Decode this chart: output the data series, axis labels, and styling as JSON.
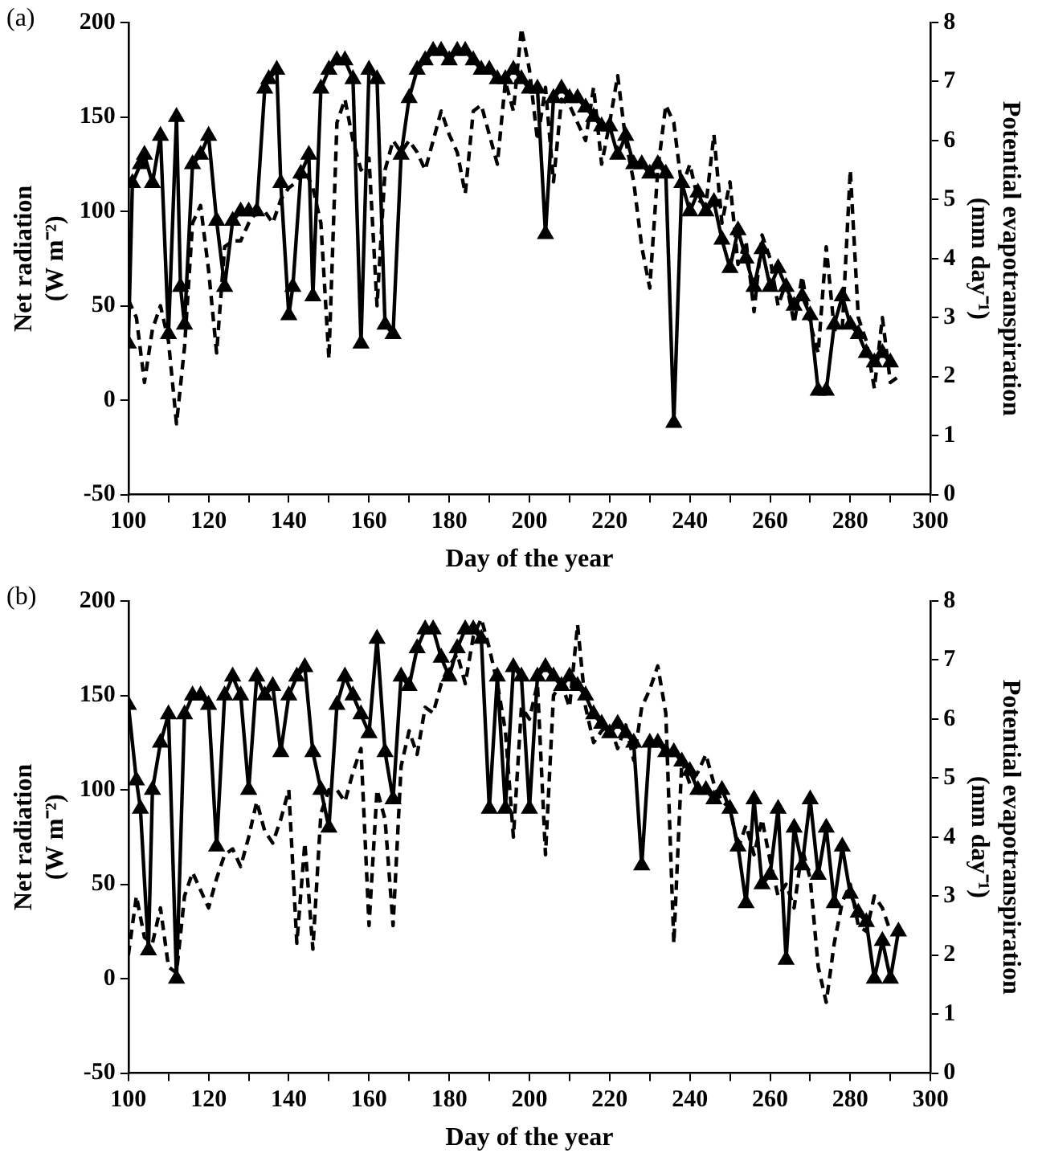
{
  "chart_data": [
    {
      "type": "line",
      "annotations": [
        "(a)"
      ],
      "xlabel": "Day of the year",
      "ylabel": "Net radiation (W m⁻²)",
      "y2label": "Potential evapotranspiration (mm day⁻¹)",
      "xlim": [
        100,
        300
      ],
      "xticks": [
        100,
        {
          "value": 110,
          "label": null
        },
        120,
        {
          "value": 130,
          "label": null
        },
        140,
        {
          "value": 150,
          "label": null
        },
        160,
        {
          "value": 170,
          "label": null
        },
        180,
        {
          "value": 190,
          "label": null
        },
        200,
        {
          "value": 210,
          "label": null
        },
        220,
        {
          "value": 230,
          "label": null
        },
        240,
        {
          "value": 250,
          "label": null
        },
        260,
        {
          "value": 270,
          "label": null
        },
        280,
        {
          "value": 290,
          "label": null
        },
        300
      ],
      "ylim": [
        -50,
        200
      ],
      "yticks": [
        -50,
        0,
        50,
        100,
        150,
        200
      ],
      "y2lim": [
        0,
        8
      ],
      "y2ticks": [
        0,
        1,
        2,
        3,
        4,
        5,
        6,
        7,
        8
      ],
      "grid": false,
      "legend": false,
      "series": [
        {
          "color": "#000000",
          "marker": "triangle",
          "line_style": "solid",
          "x": [
            100,
            101,
            103,
            104,
            106,
            108,
            110,
            112,
            113,
            114,
            116,
            118,
            120,
            122,
            124,
            126,
            128,
            130,
            132,
            134,
            135,
            137,
            138,
            140,
            141,
            143,
            145,
            146,
            148,
            150,
            152,
            154,
            156,
            158,
            160,
            162,
            164,
            166,
            168,
            170,
            172,
            174,
            176,
            178,
            180,
            182,
            184,
            186,
            188,
            190,
            192,
            194,
            196,
            198,
            200,
            202,
            204,
            206,
            208,
            210,
            212,
            214,
            216,
            218,
            220,
            222,
            224,
            226,
            228,
            230,
            232,
            234,
            236,
            238,
            240,
            242,
            244,
            246,
            248,
            250,
            252,
            254,
            256,
            258,
            260,
            262,
            264,
            266,
            268,
            270,
            272,
            274,
            276,
            278,
            280,
            282,
            284,
            286,
            288,
            290
          ],
          "values": [
            30,
            115,
            125,
            130,
            115,
            140,
            35,
            150,
            60,
            40,
            125,
            130,
            140,
            95,
            60,
            95,
            100,
            100,
            100,
            165,
            170,
            175,
            115,
            45,
            60,
            120,
            130,
            55,
            165,
            175,
            180,
            180,
            170,
            30,
            175,
            170,
            40,
            35,
            130,
            160,
            175,
            180,
            185,
            185,
            180,
            185,
            185,
            180,
            175,
            175,
            170,
            170,
            175,
            170,
            165,
            165,
            88,
            160,
            165,
            160,
            160,
            155,
            150,
            145,
            145,
            130,
            140,
            125,
            125,
            120,
            125,
            120,
            -12,
            115,
            100,
            110,
            100,
            105,
            85,
            70,
            90,
            75,
            60,
            80,
            60,
            70,
            60,
            50,
            55,
            45,
            5,
            5,
            40,
            55,
            40,
            35,
            25,
            20,
            25,
            20
          ]
        },
        {
          "color": "#000000",
          "marker": "none",
          "line_style": "dashed",
          "axis": "y2",
          "x": [
            100,
            102,
            104,
            106,
            108,
            110,
            112,
            114,
            116,
            118,
            120,
            122,
            124,
            126,
            128,
            130,
            132,
            134,
            136,
            138,
            140,
            142,
            144,
            146,
            148,
            150,
            152,
            154,
            156,
            158,
            160,
            162,
            164,
            166,
            168,
            170,
            172,
            174,
            176,
            178,
            180,
            182,
            184,
            186,
            188,
            190,
            192,
            194,
            196,
            198,
            200,
            202,
            204,
            206,
            208,
            210,
            212,
            214,
            216,
            218,
            220,
            222,
            224,
            226,
            228,
            230,
            232,
            234,
            236,
            238,
            240,
            242,
            244,
            246,
            248,
            250,
            252,
            254,
            256,
            258,
            260,
            262,
            264,
            266,
            268,
            270,
            272,
            274,
            276,
            278,
            280,
            282,
            284,
            286,
            288,
            290,
            292
          ],
          "values": [
            3.3,
            3.0,
            1.9,
            2.8,
            3.2,
            2.6,
            1.2,
            2.5,
            4.6,
            4.9,
            3.8,
            2.4,
            4.2,
            4.3,
            4.3,
            4.6,
            4.8,
            4.8,
            4.6,
            5.0,
            5.2,
            5.3,
            5.5,
            5.2,
            4.6,
            2.3,
            6.3,
            6.7,
            6.0,
            5.5,
            5.7,
            3.2,
            5.5,
            6.0,
            5.8,
            6.0,
            5.8,
            5.5,
            6.0,
            6.5,
            6.1,
            5.8,
            5.1,
            6.5,
            6.6,
            6.1,
            5.6,
            7.0,
            6.5,
            7.9,
            7.2,
            6.0,
            6.9,
            5.3,
            6.7,
            6.6,
            6.3,
            6.0,
            6.9,
            5.6,
            6.3,
            7.1,
            6.0,
            5.3,
            4.2,
            3.5,
            5.5,
            6.6,
            6.3,
            5.2,
            5.6,
            5.0,
            4.9,
            6.1,
            4.6,
            5.3,
            3.9,
            4.3,
            3.1,
            4.4,
            4.0,
            3.2,
            3.6,
            2.9,
            3.7,
            2.9,
            2.4,
            4.2,
            2.8,
            2.8,
            5.5,
            3.0,
            2.6,
            1.8,
            3.0,
            1.9,
            2.0
          ]
        }
      ]
    },
    {
      "type": "line",
      "annotations": [
        "(b)"
      ],
      "xlabel": "Day of the year",
      "ylabel": "Net radiation (W m⁻²)",
      "y2label": "Potential evapotranspiration (mm day⁻¹)",
      "xlim": [
        100,
        300
      ],
      "xticks": [
        100,
        {
          "value": 110,
          "label": null
        },
        120,
        {
          "value": 130,
          "label": null
        },
        140,
        {
          "value": 150,
          "label": null
        },
        160,
        {
          "value": 170,
          "label": null
        },
        180,
        {
          "value": 190,
          "label": null
        },
        200,
        {
          "value": 210,
          "label": null
        },
        220,
        {
          "value": 230,
          "label": null
        },
        240,
        {
          "value": 250,
          "label": null
        },
        260,
        {
          "value": 270,
          "label": null
        },
        280,
        {
          "value": 290,
          "label": null
        },
        300
      ],
      "ylim": [
        -50,
        200
      ],
      "yticks": [
        -50,
        0,
        50,
        100,
        150,
        200
      ],
      "y2lim": [
        0,
        8
      ],
      "y2ticks": [
        0,
        1,
        2,
        3,
        4,
        5,
        6,
        7,
        8
      ],
      "grid": false,
      "legend": false,
      "series": [
        {
          "color": "#000000",
          "marker": "triangle",
          "line_style": "solid",
          "x": [
            100,
            102,
            103,
            105,
            106,
            108,
            110,
            112,
            114,
            116,
            118,
            120,
            122,
            124,
            126,
            128,
            130,
            132,
            134,
            136,
            138,
            140,
            142,
            144,
            146,
            148,
            150,
            152,
            154,
            156,
            158,
            160,
            162,
            164,
            166,
            168,
            170,
            172,
            174,
            176,
            178,
            180,
            182,
            184,
            186,
            188,
            190,
            192,
            194,
            196,
            198,
            200,
            202,
            204,
            206,
            208,
            210,
            212,
            214,
            216,
            218,
            220,
            222,
            224,
            226,
            228,
            230,
            232,
            234,
            236,
            238,
            240,
            242,
            244,
            246,
            248,
            250,
            252,
            254,
            256,
            258,
            260,
            262,
            264,
            266,
            268,
            270,
            272,
            274,
            276,
            278,
            280,
            282,
            284,
            286,
            288,
            290,
            292
          ],
          "values": [
            145,
            105,
            90,
            15,
            100,
            125,
            140,
            0,
            140,
            150,
            150,
            145,
            70,
            150,
            160,
            150,
            100,
            160,
            150,
            155,
            120,
            150,
            160,
            165,
            120,
            100,
            80,
            145,
            160,
            150,
            140,
            130,
            180,
            120,
            95,
            160,
            155,
            175,
            185,
            185,
            170,
            160,
            175,
            185,
            185,
            180,
            90,
            160,
            90,
            165,
            160,
            90,
            160,
            165,
            160,
            155,
            160,
            155,
            150,
            140,
            135,
            130,
            135,
            130,
            125,
            60,
            125,
            125,
            120,
            120,
            115,
            110,
            100,
            100,
            95,
            100,
            90,
            70,
            40,
            95,
            50,
            55,
            90,
            10,
            80,
            60,
            95,
            55,
            80,
            40,
            70,
            45,
            35,
            30,
            0,
            20,
            0,
            25
          ]
        },
        {
          "color": "#000000",
          "marker": "none",
          "line_style": "dashed",
          "axis": "y2",
          "x": [
            100,
            102,
            104,
            106,
            108,
            110,
            112,
            114,
            116,
            118,
            120,
            122,
            124,
            126,
            128,
            130,
            132,
            134,
            136,
            138,
            140,
            142,
            144,
            146,
            148,
            150,
            152,
            154,
            156,
            158,
            160,
            162,
            164,
            166,
            168,
            170,
            172,
            174,
            176,
            178,
            180,
            182,
            184,
            186,
            188,
            190,
            192,
            194,
            196,
            198,
            200,
            202,
            204,
            206,
            208,
            210,
            212,
            214,
            216,
            218,
            220,
            222,
            224,
            226,
            228,
            230,
            232,
            234,
            236,
            238,
            240,
            242,
            244,
            246,
            248,
            250,
            252,
            254,
            256,
            258,
            260,
            262,
            264,
            266,
            268,
            270,
            272,
            274,
            276,
            278,
            280,
            282,
            284,
            286,
            288,
            290
          ],
          "values": [
            2.0,
            3.0,
            2.3,
            2.2,
            2.8,
            1.8,
            1.7,
            3.0,
            3.4,
            3.1,
            2.8,
            3.3,
            3.7,
            3.8,
            3.5,
            4.0,
            4.6,
            4.1,
            3.9,
            4.3,
            4.8,
            2.2,
            3.9,
            2.1,
            4.4,
            4.8,
            4.8,
            4.6,
            5.1,
            5.5,
            2.5,
            4.8,
            4.3,
            2.5,
            5.2,
            5.8,
            5.4,
            6.2,
            6.1,
            6.6,
            6.9,
            7.1,
            6.6,
            7.4,
            7.7,
            7.2,
            6.6,
            5.8,
            4.0,
            6.2,
            6.0,
            6.6,
            3.7,
            6.4,
            6.6,
            6.2,
            7.6,
            6.2,
            5.6,
            5.8,
            5.9,
            5.5,
            5.9,
            5.3,
            6.2,
            6.5,
            6.9,
            6.1,
            2.2,
            5.3,
            4.9,
            5.1,
            5.4,
            4.9,
            4.6,
            4.5,
            3.8,
            4.2,
            3.7,
            4.3,
            3.6,
            3.0,
            3.2,
            2.8,
            3.8,
            3.3,
            1.8,
            1.2,
            2.2,
            2.9,
            3.2,
            2.5,
            2.4,
            3.0,
            2.8,
            2.4
          ]
        }
      ]
    }
  ]
}
